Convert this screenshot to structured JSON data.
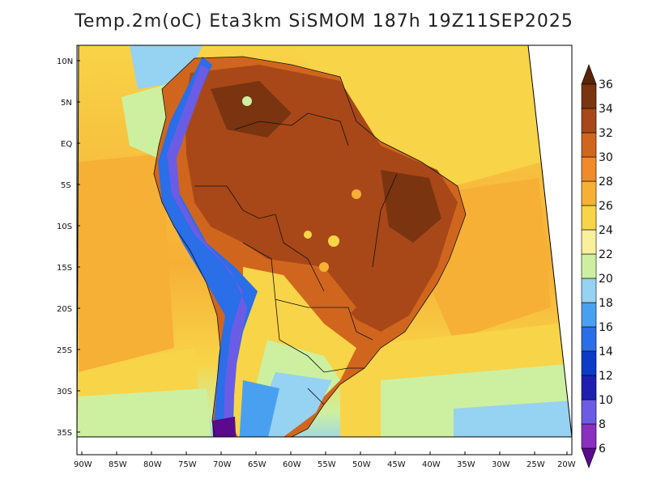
{
  "title": "Temp.2m(oC) Eta3km SiSMOM 187h 19Z11SEP2025",
  "lat_labels": [
    "10N",
    "5N",
    "EQ",
    "5S",
    "10S",
    "15S",
    "20S",
    "25S",
    "30S",
    "35S"
  ],
  "lon_labels": [
    "90W",
    "85W",
    "80W",
    "75W",
    "70W",
    "65W",
    "60W",
    "55W",
    "50W",
    "45W",
    "40W",
    "35W",
    "30W",
    "25W",
    "20W"
  ],
  "colorbar": {
    "labels": [
      "6",
      "8",
      "10",
      "12",
      "14",
      "16",
      "18",
      "20",
      "22",
      "24",
      "26",
      "28",
      "30",
      "32",
      "34",
      "36"
    ],
    "colors": [
      "#5a0a8c",
      "#8a2fc0",
      "#6b5ce6",
      "#2020b0",
      "#0a3cc8",
      "#2a6ee8",
      "#4aa0f0",
      "#96d2f2",
      "#cdf0a0",
      "#f8f09a",
      "#f8d448",
      "#f6b036",
      "#f08a2a",
      "#d0661e",
      "#a84818",
      "#7a3410",
      "#5a2408"
    ]
  },
  "field_colors": {
    "ocean_warm": "#f8d448",
    "ocean_mid": "#f6b036",
    "ocean_cool": "#cdf0a0",
    "ocean_south": "#96d2f2",
    "land_hot": "#a84818",
    "land_very_hot": "#7a3410",
    "land_warm": "#d0661e",
    "andes": "#5a0a8c",
    "andes_edge": "#2a6ee8"
  }
}
